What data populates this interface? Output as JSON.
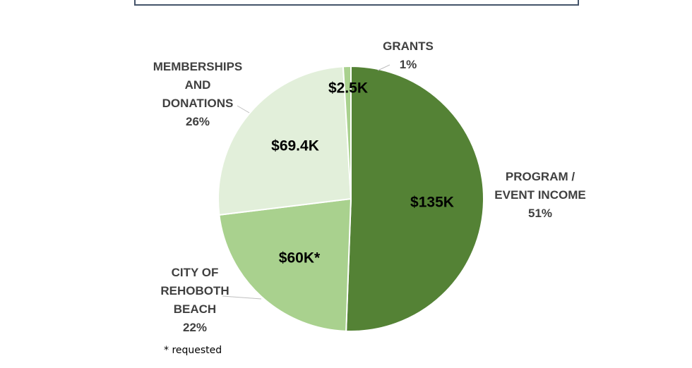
{
  "chart_data": {
    "type": "pie",
    "start_angle_deg": 0,
    "direction": "clockwise",
    "slices": [
      {
        "name": "PROGRAM / EVENT INCOME",
        "label_lines": [
          "PROGRAM /",
          "EVENT INCOME"
        ],
        "percent_label": "51%",
        "value_label": "$135K",
        "value": 135,
        "color": "#548235",
        "value_text_color": "#000000"
      },
      {
        "name": "CITY OF REHOBOTH BEACH",
        "label_lines": [
          "CITY OF",
          "REHOBOTH",
          "BEACH"
        ],
        "percent_label": "22%",
        "value_label": "$60K*",
        "value": 60,
        "color": "#a9d18e",
        "value_text_color": "#000000"
      },
      {
        "name": "MEMBERSHIPS AND DONATIONS",
        "label_lines": [
          "MEMBERSHIPS",
          "AND",
          "DONATIONS"
        ],
        "percent_label": "26%",
        "value_label": "$69.4K",
        "value": 69.4,
        "color": "#e2efda",
        "value_text_color": "#000000"
      },
      {
        "name": "GRANTS",
        "label_lines": [
          "GRANTS"
        ],
        "percent_label": "1%",
        "value_label": "$2.5K",
        "value": 2.5,
        "color": "#a9d18e",
        "value_text_color": "#000000"
      }
    ],
    "label_color": "#404040",
    "leader_line_color": "#bfbfbf"
  },
  "footnote": "* requested",
  "colors": {
    "frame": "#44546a",
    "background": "#ffffff"
  }
}
